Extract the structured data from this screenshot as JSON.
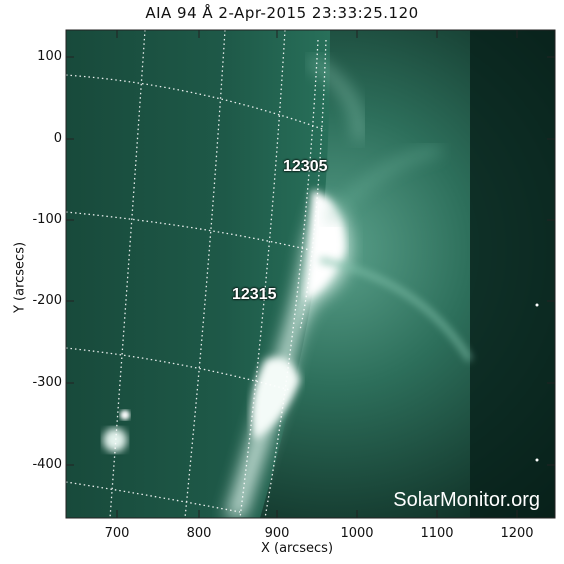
{
  "title": "AIA 94 Å   2-Apr-2015 23:33:25.120",
  "xlabel": "X (arcsecs)",
  "ylabel": "Y (arcsecs)",
  "x_ticks": [
    "700",
    "800",
    "900",
    "1000",
    "1100",
    "1200"
  ],
  "y_ticks": [
    "100",
    "0",
    "-100",
    "-200",
    "-300",
    "-400"
  ],
  "active_regions": [
    {
      "id": "12305"
    },
    {
      "id": "12315"
    }
  ],
  "watermark": "SolarMonitor.org",
  "colors": {
    "background_sun": "#1f5a48",
    "limb_bright": "#e8f4ef",
    "corona": "#3a7a66",
    "space": "#061a14"
  }
}
